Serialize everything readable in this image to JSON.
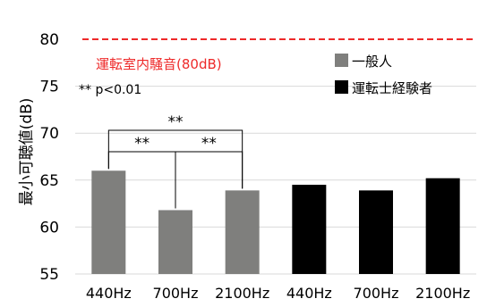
{
  "chart_data": {
    "type": "bar",
    "ylabel": "最小可聴値(dB)",
    "ylim": [
      55,
      80
    ],
    "yticks": [
      55,
      60,
      65,
      70,
      75,
      80
    ],
    "grid": true,
    "categories": [
      "440Hz",
      "700Hz",
      "2100Hz",
      "440Hz",
      "700Hz",
      "2100Hz"
    ],
    "series": [
      {
        "name": "一般人",
        "color": "#7f7f7d",
        "values": [
          66.0,
          61.8,
          63.9,
          null,
          null,
          null
        ]
      },
      {
        "name": "運転士経験者",
        "color": "#000000",
        "values": [
          null,
          null,
          null,
          64.5,
          63.9,
          65.2
        ]
      }
    ],
    "reference_line": {
      "label": "運転室内騒音(80dB)",
      "value": 80,
      "color": "#ee2a2a",
      "style": "dashed"
    },
    "significance_note": "** p<0.01",
    "significance_brackets": [
      {
        "from": 0,
        "to": 1,
        "label": "**"
      },
      {
        "from": 1,
        "to": 2,
        "label": "**"
      },
      {
        "from": 0,
        "to": 2,
        "label": "**"
      }
    ],
    "legend_position": "top-right"
  }
}
